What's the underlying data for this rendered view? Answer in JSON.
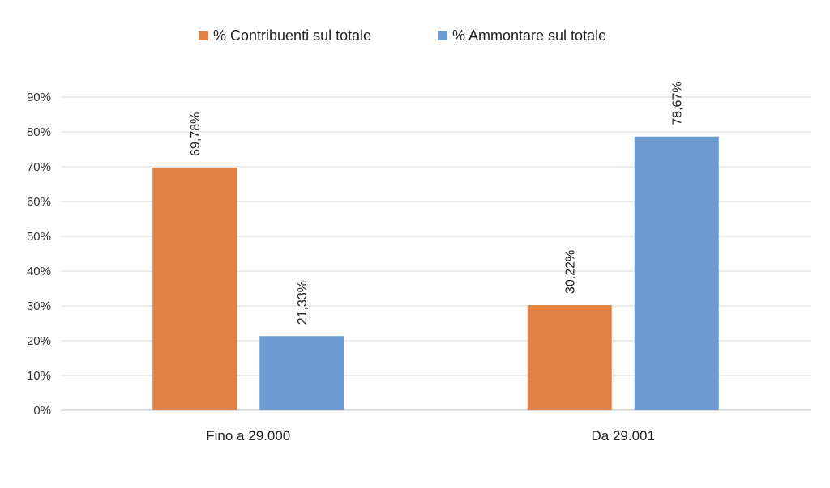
{
  "chart_data": {
    "type": "bar",
    "title": "",
    "xlabel": "",
    "ylabel": "",
    "categories": [
      "Fino a 29.000",
      "Da 29.001"
    ],
    "series": [
      {
        "name": "% Contribuenti sul totale",
        "color": "#e08244",
        "values": [
          69.78,
          30.22
        ],
        "labels": [
          "69,78%",
          "30,22%"
        ]
      },
      {
        "name": "% Ammontare sul totale",
        "color": "#6b9bd2",
        "values": [
          21.33,
          78.67
        ],
        "labels": [
          "21,33%",
          "78,67%"
        ]
      }
    ],
    "ylim": [
      0,
      90
    ],
    "yticks": [
      0,
      10,
      20,
      30,
      40,
      50,
      60,
      70,
      80,
      90
    ],
    "ytick_labels": [
      "0%",
      "10%",
      "20%",
      "30%",
      "40%",
      "50%",
      "60%",
      "70%",
      "80%",
      "90%"
    ],
    "grid": true,
    "legend_position": "top-center",
    "data_label_orientation": "vertical"
  }
}
